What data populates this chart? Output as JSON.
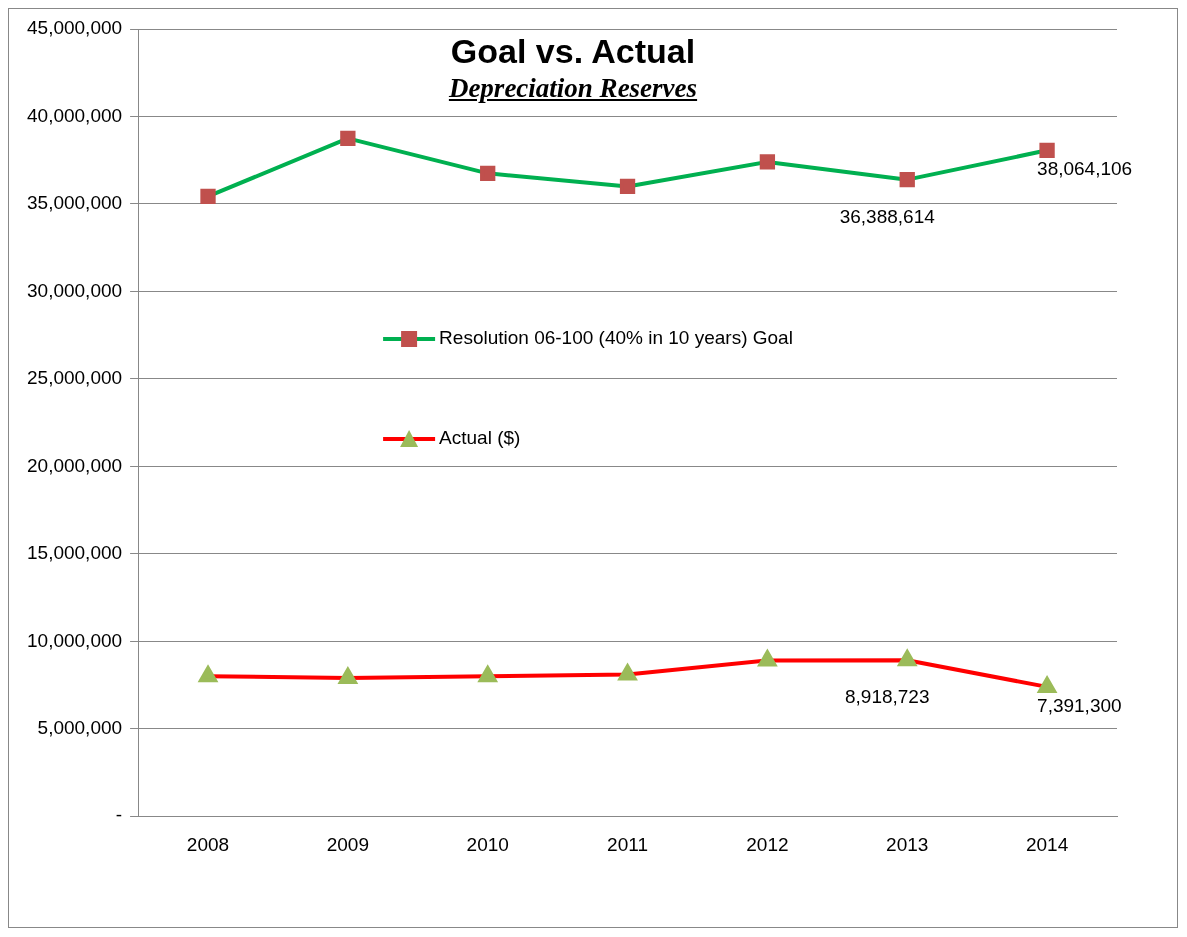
{
  "chart_data": {
    "type": "line",
    "title": "Goal vs. Actual",
    "subtitle": "Depreciation Reserves",
    "categories": [
      "2008",
      "2009",
      "2010",
      "2011",
      "2012",
      "2013",
      "2014"
    ],
    "series": [
      {
        "name": "Resolution 06-100 (40% in 10 years) Goal",
        "color": "#00b050",
        "colors": [
          "#c0504d",
          "#c0504d",
          "#c0504d",
          "#c0504d",
          "#c0504d",
          "#c0504d",
          "#c0504d"
        ],
        "marker": "square",
        "values": [
          35430000,
          38750000,
          36750000,
          36000000,
          37400000,
          36388614,
          38064106
        ],
        "value_labels": [
          null,
          null,
          null,
          null,
          null,
          "36,388,614",
          "38,064,106"
        ]
      },
      {
        "name": "Actual ($)",
        "color": "#ff0000",
        "colors": [
          "#9bbb59",
          "#9bbb59",
          "#9bbb59",
          "#9bbb59",
          "#9bbb59",
          "#9bbb59",
          "#9bbb59"
        ],
        "marker": "triangle",
        "values": [
          8000000,
          7900000,
          8000000,
          8100000,
          8900000,
          8918723,
          7391300
        ],
        "value_labels": [
          null,
          null,
          null,
          null,
          null,
          "8,918,723",
          "7,391,300"
        ]
      }
    ],
    "ylim": [
      0,
      45000000
    ],
    "yticks": [
      {
        "value": 0,
        "label": "-"
      },
      {
        "value": 5000000,
        "label": "5,000,000"
      },
      {
        "value": 10000000,
        "label": "10,000,000"
      },
      {
        "value": 15000000,
        "label": "15,000,000"
      },
      {
        "value": 20000000,
        "label": "20,000,000"
      },
      {
        "value": 25000000,
        "label": "25,000,000"
      },
      {
        "value": 30000000,
        "label": "30,000,000"
      },
      {
        "value": 35000000,
        "label": "35,000,000"
      },
      {
        "value": 40000000,
        "label": "40,000,000"
      },
      {
        "value": 45000000,
        "label": "45,000,000"
      }
    ],
    "grid": "y",
    "legend": "left"
  }
}
